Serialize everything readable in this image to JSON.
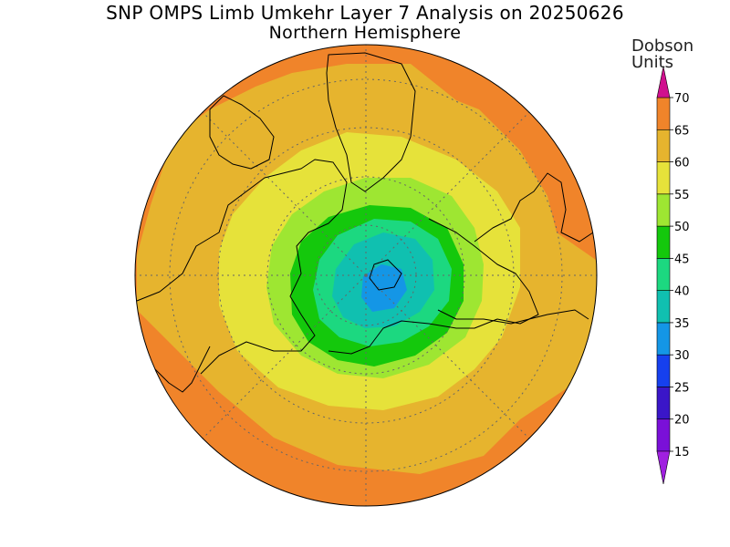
{
  "title": "SNP OMPS Limb Umkehr Layer 7 Analysis on 20250626",
  "subtitle": "Northern Hemisphere",
  "colorbar": {
    "unit_line1": "Dobson",
    "unit_line2": "Units",
    "levels": [
      {
        "label": "15",
        "color": "#7a10d8"
      },
      {
        "label": "20",
        "color": "#3a16c8"
      },
      {
        "label": "25",
        "color": "#1640ee"
      },
      {
        "label": "30",
        "color": "#1496e6"
      },
      {
        "label": "35",
        "color": "#10c0b0"
      },
      {
        "label": "40",
        "color": "#1cd880"
      },
      {
        "label": "45",
        "color": "#14c80c"
      },
      {
        "label": "50",
        "color": "#9ee632"
      },
      {
        "label": "55",
        "color": "#e6e23a"
      },
      {
        "label": "60",
        "color": "#e6b42e"
      },
      {
        "label": "65",
        "color": "#f0842a"
      },
      {
        "label": "70",
        "color": "#e61010"
      }
    ],
    "under_color": "#a020e0",
    "over_color": "#d0108e"
  },
  "map": {
    "projection": "north-polar-stereographic",
    "background_color": "#f0842a",
    "field_bands": [
      {
        "range": "55-60",
        "color": "#e6b42e"
      },
      {
        "range": "50-55",
        "color": "#e6e23a"
      },
      {
        "range": "45-50",
        "color": "#9ee632"
      },
      {
        "range": "40-45",
        "color": "#14c80c"
      },
      {
        "range": "35-40",
        "color": "#1cd880"
      },
      {
        "range": "30-35",
        "color": "#10c0b0"
      },
      {
        "range": "25-30",
        "color": "#1496e6"
      }
    ]
  }
}
